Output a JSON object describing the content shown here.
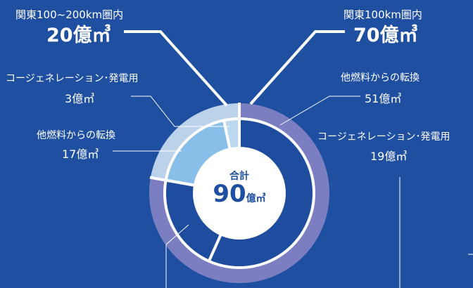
{
  "colors": {
    "background": "#1f4fa0",
    "outer_within100": "#7b7fc2",
    "outer_100to200": "#bcd2ea",
    "inner_other_fuel": "#1e4da0",
    "inner_cogeneration": "#1e4da0",
    "inner_light_other_fuel": "#88bfe8",
    "inner_light_cogeneration": "#bcd8f0",
    "separator": "#ffffff",
    "center": "#ffffff"
  },
  "center": {
    "label": "合計",
    "value": "90",
    "unit": "億㎥"
  },
  "regions": [
    {
      "name": "関東100km圏内",
      "value": "70",
      "unit": "億㎥"
    },
    {
      "name": "関東100~200km圏内",
      "value": "20",
      "unit": "億㎥"
    }
  ],
  "segments": [
    {
      "name": "他燃料からの転換",
      "value": "51",
      "unit": "億㎥"
    },
    {
      "name": "コージェネレーション･発電用",
      "value": "19",
      "unit": "億㎥"
    },
    {
      "name": "他燃料からの転換",
      "value": "17",
      "unit": "億㎥"
    },
    {
      "name": "コージェネレーション･発電用",
      "value": "3",
      "unit": "億㎥"
    }
  ],
  "chart_data": {
    "type": "pie",
    "style": "nested-donut",
    "total": 90,
    "unit": "億㎥",
    "outer_ring": [
      {
        "name": "関東100km圏内",
        "value": 70
      },
      {
        "name": "関東100~200km圏内",
        "value": 20
      }
    ],
    "inner_ring": [
      {
        "group": "関東100km圏内",
        "name": "他燃料からの転換",
        "value": 51
      },
      {
        "group": "関東100km圏内",
        "name": "コージェネレーション･発電用",
        "value": 19
      },
      {
        "group": "関東100~200km圏内",
        "name": "他燃料からの転換",
        "value": 17
      },
      {
        "group": "関東100~200km圏内",
        "name": "コージェネレーション･発電用",
        "value": 3
      }
    ]
  }
}
